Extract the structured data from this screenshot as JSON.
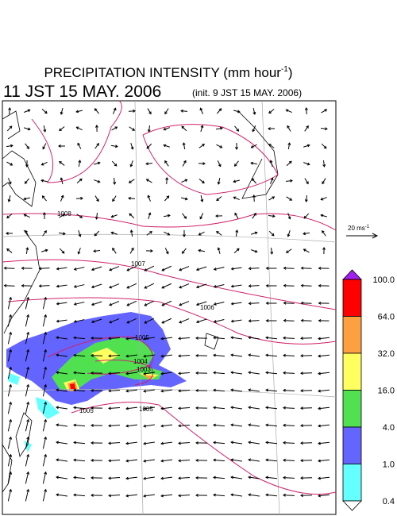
{
  "header": {
    "title": {
      "main": "PRECIPITATION INTENSITY (mm hour",
      "sup": "-1",
      "close": ")"
    },
    "time": "11 JST 15 MAY. 2006",
    "init": "(init. 9 JST 15 MAY. 2006)"
  },
  "wind_reference": {
    "label": "20 ms",
    "sup": "-1"
  },
  "isobar_labels": [
    "1008",
    "1007",
    "1006",
    "1005",
    "1004",
    "1003",
    "1005",
    "1005"
  ],
  "colorbar": {
    "labels": [
      "100.0",
      "64.0",
      "32.0",
      "16.0",
      "4.0",
      "1.0",
      "0.4"
    ],
    "colors": [
      "#a020f0",
      "#ff0000",
      "#ffa040",
      "#ffff60",
      "#50e050",
      "#6464ff",
      "#64ffff",
      "#ffffff"
    ]
  }
}
